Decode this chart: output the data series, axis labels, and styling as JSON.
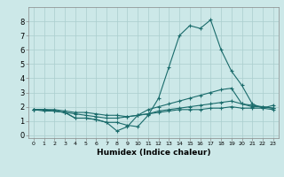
{
  "xlabel": "Humidex (Indice chaleur)",
  "x_ticks": [
    0,
    1,
    2,
    3,
    4,
    5,
    6,
    7,
    8,
    9,
    10,
    11,
    12,
    13,
    14,
    15,
    16,
    17,
    18,
    19,
    20,
    21,
    22,
    23
  ],
  "xlim": [
    -0.5,
    23.5
  ],
  "ylim": [
    -0.2,
    9.0
  ],
  "y_ticks": [
    0,
    1,
    2,
    3,
    4,
    5,
    6,
    7,
    8
  ],
  "bg_color": "#cce8e8",
  "line_color": "#1a6b6b",
  "grid_color": "#aacece",
  "lines": [
    {
      "x": [
        0,
        1,
        2,
        3,
        4,
        5,
        6,
        7,
        8,
        9,
        10,
        11,
        12,
        13,
        14,
        15,
        16,
        17,
        18,
        19,
        20,
        21,
        22,
        23
      ],
      "y": [
        1.8,
        1.8,
        1.7,
        1.6,
        1.2,
        1.2,
        1.1,
        0.9,
        0.9,
        0.7,
        0.6,
        1.4,
        2.6,
        4.8,
        7.0,
        7.7,
        7.5,
        8.1,
        6.0,
        4.5,
        3.5,
        2.2,
        1.9,
        2.1
      ]
    },
    {
      "x": [
        0,
        1,
        2,
        3,
        4,
        5,
        6,
        7,
        8,
        9,
        10,
        11,
        12,
        13,
        14,
        15,
        16,
        17,
        18,
        19,
        20,
        21,
        22,
        23
      ],
      "y": [
        1.8,
        1.8,
        1.7,
        1.6,
        1.2,
        1.2,
        1.1,
        0.9,
        0.3,
        0.6,
        1.4,
        1.8,
        2.0,
        2.2,
        2.4,
        2.6,
        2.8,
        3.0,
        3.2,
        3.3,
        2.2,
        2.1,
        2.0,
        1.9
      ]
    },
    {
      "x": [
        0,
        1,
        2,
        3,
        4,
        5,
        6,
        7,
        8,
        9,
        10,
        11,
        12,
        13,
        14,
        15,
        16,
        17,
        18,
        19,
        20,
        21,
        22,
        23
      ],
      "y": [
        1.8,
        1.8,
        1.8,
        1.7,
        1.6,
        1.6,
        1.5,
        1.4,
        1.4,
        1.3,
        1.4,
        1.5,
        1.7,
        1.8,
        1.9,
        2.0,
        2.1,
        2.2,
        2.3,
        2.4,
        2.2,
        2.0,
        2.0,
        1.9
      ]
    },
    {
      "x": [
        0,
        1,
        2,
        3,
        4,
        5,
        6,
        7,
        8,
        9,
        10,
        11,
        12,
        13,
        14,
        15,
        16,
        17,
        18,
        19,
        20,
        21,
        22,
        23
      ],
      "y": [
        1.8,
        1.7,
        1.7,
        1.6,
        1.5,
        1.4,
        1.3,
        1.2,
        1.2,
        1.3,
        1.4,
        1.5,
        1.6,
        1.7,
        1.8,
        1.8,
        1.8,
        1.9,
        1.9,
        2.0,
        1.9,
        1.9,
        1.9,
        1.8
      ]
    }
  ]
}
